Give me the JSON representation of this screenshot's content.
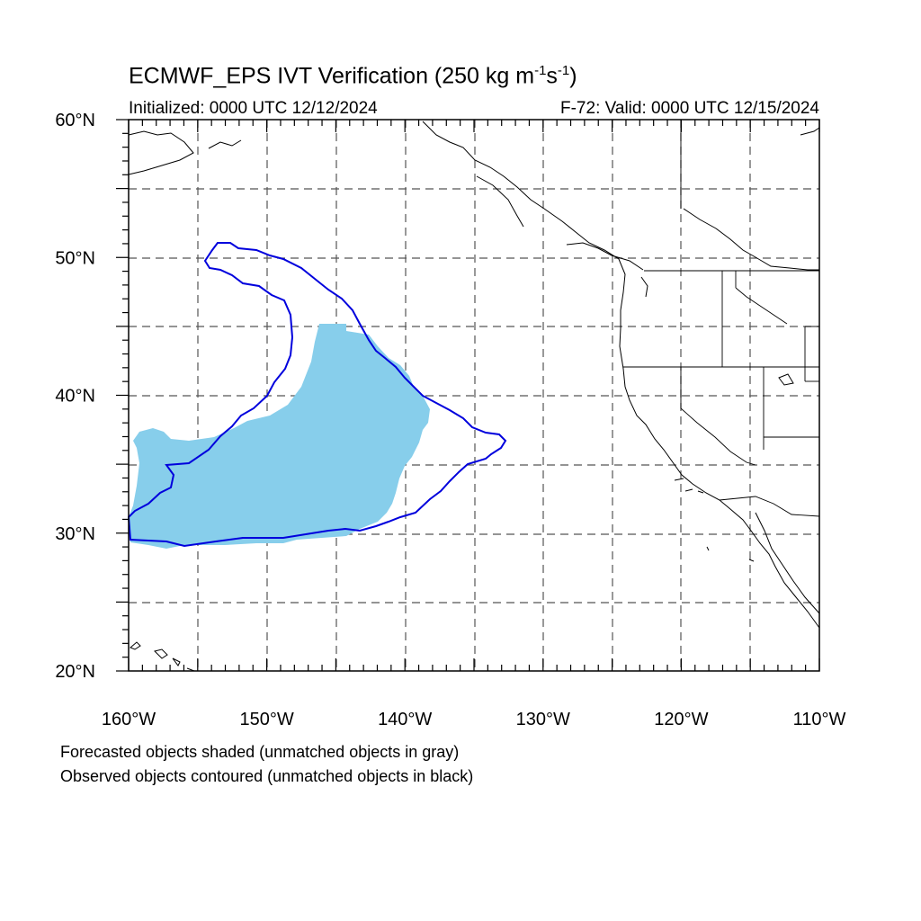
{
  "title": {
    "main": "ECMWF_EPS IVT Verification (250 kg m",
    "sup1": "-1",
    "mid": "s",
    "sup2": "-1",
    "close": ")"
  },
  "init_label": "Initialized: 0000 UTC 12/12/2024",
  "valid_label": "F-72: Valid: 0000 UTC 12/15/2024",
  "notes": [
    "Forecasted objects shaded (unmatched objects in gray)",
    "Observed objects contoured (unmatched objects in black)"
  ],
  "colors": {
    "forecast_fill": "#87ceeb",
    "observed_contour": "#0000dd",
    "coastline": "#000000",
    "grid": "#555555"
  },
  "map": {
    "lon_range": [
      -160,
      -110
    ],
    "lat_range": [
      20,
      60
    ],
    "lon_ticks": [
      "160°W",
      "150°W",
      "140°W",
      "130°W",
      "120°W",
      "110°W"
    ],
    "lat_ticks": [
      "20°N",
      "30°N",
      "40°N",
      "50°N",
      "60°N"
    ],
    "grid_lines": "dashed every 5°"
  }
}
